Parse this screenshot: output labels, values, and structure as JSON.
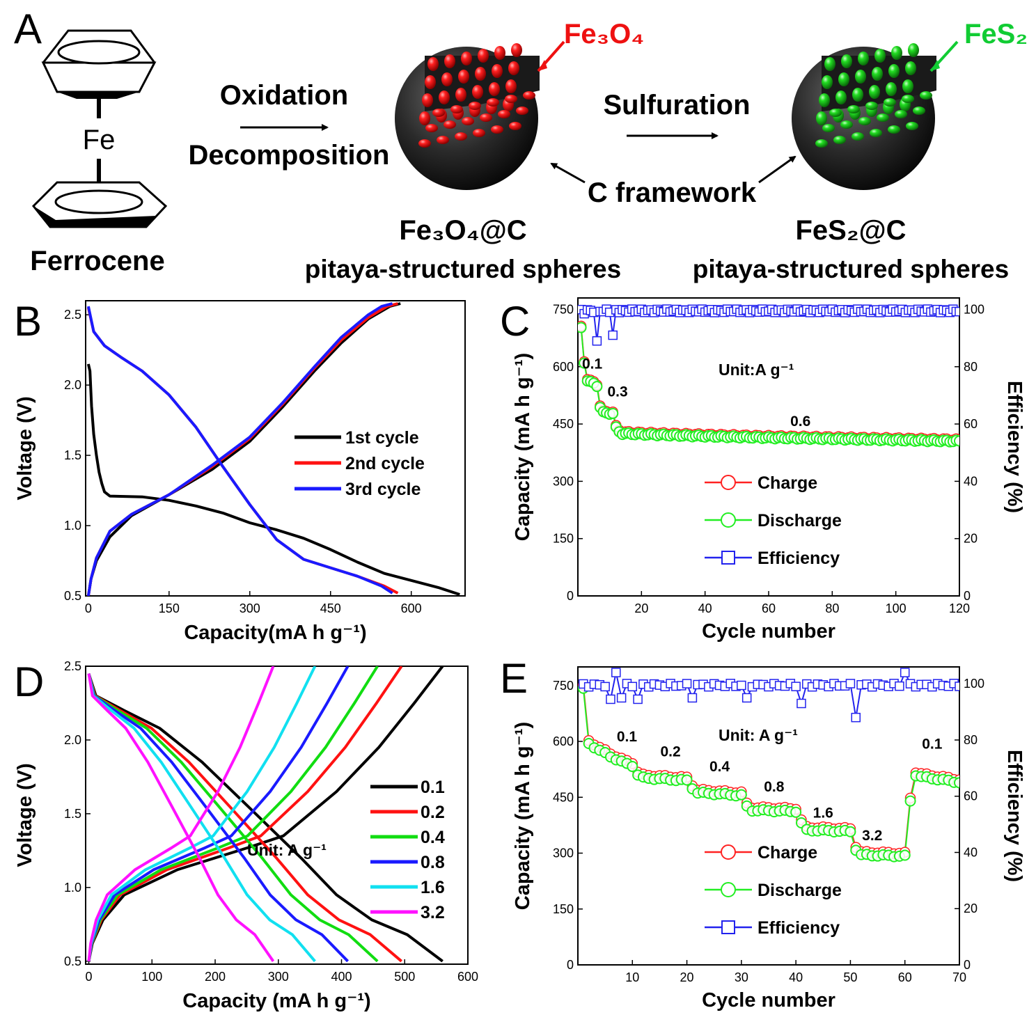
{
  "panel_labels": {
    "A": "A",
    "B": "B",
    "C": "C",
    "D": "D",
    "E": "E"
  },
  "schematic": {
    "ferrocene_label": "Ferrocene",
    "ferrocene_atom": "Fe",
    "step1_line1": "Oxidation",
    "step1_line2": "Decomposition",
    "step2": "Sulfuration",
    "fe3o4_label": "Fe₃O₄",
    "fes2_label": "FeS₂",
    "c_framework": "C framework",
    "product1_name": "Fe₃O₄@C",
    "product1_desc": "pitaya-structured spheres",
    "product2_name": "FeS₂@C",
    "product2_desc": "pitaya-structured spheres",
    "colors": {
      "fe3o4": "#ee1111",
      "fes2": "#11cc33",
      "shell": "#2a2a2a"
    }
  },
  "chart_data": [
    {
      "id": "B",
      "type": "line",
      "xlabel": "Capacity(mA h g⁻¹)",
      "ylabel": "Voltage (V)",
      "xlim": [
        -5,
        700
      ],
      "ylim": [
        0.5,
        2.6
      ],
      "xticks": [
        0,
        150,
        300,
        450,
        600
      ],
      "yticks": [
        0.5,
        1.0,
        1.5,
        2.0,
        2.5
      ],
      "ytick_labels": [
        "0.5",
        "1.0",
        "1.5",
        "2.0",
        "2.5"
      ],
      "series": [
        {
          "name": "1st  cycle",
          "color": "#000000",
          "curves": [
            [
              [
                0,
                2.15
              ],
              [
                3,
                2.1
              ],
              [
                6,
                1.85
              ],
              [
                10,
                1.65
              ],
              [
                15,
                1.5
              ],
              [
                20,
                1.38
              ],
              [
                25,
                1.3
              ],
              [
                30,
                1.24
              ],
              [
                40,
                1.21
              ],
              [
                100,
                1.205
              ],
              [
                150,
                1.18
              ],
              [
                200,
                1.14
              ],
              [
                250,
                1.09
              ],
              [
                300,
                1.02
              ],
              [
                350,
                0.97
              ],
              [
                400,
                0.91
              ],
              [
                450,
                0.83
              ],
              [
                500,
                0.74
              ],
              [
                550,
                0.66
              ],
              [
                600,
                0.61
              ],
              [
                650,
                0.56
              ],
              [
                690,
                0.51
              ]
            ],
            [
              [
                0,
                0.5
              ],
              [
                5,
                0.62
              ],
              [
                15,
                0.75
              ],
              [
                40,
                0.92
              ],
              [
                80,
                1.07
              ],
              [
                150,
                1.22
              ],
              [
                230,
                1.4
              ],
              [
                300,
                1.6
              ],
              [
                360,
                1.84
              ],
              [
                420,
                2.1
              ],
              [
                470,
                2.3
              ],
              [
                520,
                2.47
              ],
              [
                560,
                2.56
              ],
              [
                580,
                2.58
              ]
            ]
          ]
        },
        {
          "name": "2nd cycle",
          "color": "#ff1111",
          "curves": [
            [
              [
                0,
                2.55
              ],
              [
                10,
                2.38
              ],
              [
                30,
                2.28
              ],
              [
                60,
                2.2
              ],
              [
                100,
                2.1
              ],
              [
                150,
                1.93
              ],
              [
                200,
                1.7
              ],
              [
                250,
                1.42
              ],
              [
                300,
                1.15
              ],
              [
                350,
                0.9
              ],
              [
                400,
                0.76
              ],
              [
                450,
                0.7
              ],
              [
                500,
                0.64
              ],
              [
                550,
                0.57
              ],
              [
                575,
                0.52
              ]
            ],
            [
              [
                0,
                0.5
              ],
              [
                5,
                0.62
              ],
              [
                15,
                0.77
              ],
              [
                40,
                0.96
              ],
              [
                80,
                1.08
              ],
              [
                150,
                1.22
              ],
              [
                230,
                1.42
              ],
              [
                300,
                1.62
              ],
              [
                360,
                1.86
              ],
              [
                420,
                2.12
              ],
              [
                470,
                2.32
              ],
              [
                520,
                2.48
              ],
              [
                555,
                2.56
              ],
              [
                575,
                2.58
              ]
            ]
          ]
        },
        {
          "name": "3rd  cycle",
          "color": "#1a1aff",
          "curves": [
            [
              [
                0,
                2.56
              ],
              [
                10,
                2.38
              ],
              [
                30,
                2.28
              ],
              [
                60,
                2.2
              ],
              [
                100,
                2.1
              ],
              [
                150,
                1.93
              ],
              [
                200,
                1.7
              ],
              [
                250,
                1.42
              ],
              [
                300,
                1.15
              ],
              [
                350,
                0.9
              ],
              [
                400,
                0.76
              ],
              [
                450,
                0.7
              ],
              [
                500,
                0.64
              ],
              [
                545,
                0.57
              ],
              [
                565,
                0.52
              ]
            ],
            [
              [
                0,
                0.5
              ],
              [
                5,
                0.62
              ],
              [
                15,
                0.77
              ],
              [
                40,
                0.96
              ],
              [
                80,
                1.08
              ],
              [
                150,
                1.22
              ],
              [
                230,
                1.43
              ],
              [
                300,
                1.63
              ],
              [
                360,
                1.87
              ],
              [
                420,
                2.13
              ],
              [
                470,
                2.34
              ],
              [
                520,
                2.5
              ],
              [
                545,
                2.56
              ],
              [
                565,
                2.58
              ]
            ]
          ]
        }
      ],
      "legend_position": "center-right"
    },
    {
      "id": "C",
      "type": "scatter",
      "xlabel": "Cycle number",
      "ylabel": "Capacity (mA h g⁻¹)",
      "y2label": "Efficiency (%)",
      "xlim": [
        0,
        120
      ],
      "ylim": [
        0,
        780
      ],
      "y2lim": [
        0,
        104
      ],
      "xticks": [
        20,
        40,
        60,
        80,
        100,
        120
      ],
      "yticks": [
        0,
        150,
        300,
        450,
        600,
        750
      ],
      "y2ticks": [
        0,
        20,
        40,
        60,
        80,
        100
      ],
      "unit_label": "Unit:A g⁻¹",
      "annotations": [
        {
          "text": "0.1",
          "x": 4.5,
          "y": 595
        },
        {
          "text": "0.3",
          "x": 12.5,
          "y": 522
        },
        {
          "text": "0.6",
          "x": 70,
          "y": 445
        }
      ],
      "capacity_profile": [
        [
          1,
          700
        ],
        [
          2,
          610
        ],
        [
          3,
          565
        ],
        [
          4,
          560
        ],
        [
          5,
          555
        ],
        [
          6,
          550
        ],
        [
          7,
          495
        ],
        [
          8,
          480
        ],
        [
          9,
          478
        ],
        [
          10,
          478
        ],
        [
          11,
          478
        ],
        [
          12,
          440
        ],
        [
          13,
          430
        ],
        [
          14,
          425
        ],
        [
          20,
          423
        ],
        [
          40,
          418
        ],
        [
          60,
          414
        ],
        [
          80,
          411
        ],
        [
          100,
          408
        ],
        [
          120,
          405
        ]
      ],
      "charge_offset": 4,
      "efficiency_base": 99.5,
      "efficiency_dips": [
        [
          6,
          89
        ],
        [
          11,
          91
        ],
        [
          2,
          98.5
        ]
      ],
      "series": [
        {
          "name": "Charge",
          "color": "#ff2222",
          "marker": "circle"
        },
        {
          "name": "Discharge",
          "color": "#22ee22",
          "marker": "circle"
        },
        {
          "name": "Efficiency",
          "color": "#2222ee",
          "marker": "square"
        }
      ]
    },
    {
      "id": "D",
      "type": "line",
      "xlabel": "Capacity (mA h g⁻¹)",
      "ylabel": "Voltage (V)",
      "xlim": [
        -5,
        600
      ],
      "ylim": [
        0.48,
        2.5
      ],
      "xticks": [
        0,
        100,
        200,
        300,
        400,
        500,
        600
      ],
      "yticks": [
        0.5,
        1.0,
        1.5,
        2.0,
        2.5
      ],
      "ytick_labels": [
        "0.5",
        "1.0",
        "1.5",
        "2.0",
        "2.5"
      ],
      "unit_label": "Unit: A g⁻¹",
      "series": [
        {
          "name": "0.1",
          "color": "#000000",
          "cap": 560
        },
        {
          "name": "0.2",
          "color": "#ff1111",
          "cap": 495
        },
        {
          "name": "0.4",
          "color": "#11dd11",
          "cap": 457
        },
        {
          "name": "0.8",
          "color": "#1a1aff",
          "cap": 410
        },
        {
          "name": "1.6",
          "color": "#11e0f0",
          "cap": 358
        },
        {
          "name": "3.2",
          "color": "#ff11ff",
          "cap": 292
        }
      ],
      "discharge_shape": [
        [
          0,
          2.45
        ],
        [
          0.02,
          2.3
        ],
        [
          0.1,
          2.2
        ],
        [
          0.2,
          2.08
        ],
        [
          0.32,
          1.85
        ],
        [
          0.45,
          1.55
        ],
        [
          0.6,
          1.2
        ],
        [
          0.7,
          0.95
        ],
        [
          0.8,
          0.78
        ],
        [
          0.9,
          0.68
        ],
        [
          1.0,
          0.5
        ]
      ],
      "charge_shape": [
        [
          0,
          0.5
        ],
        [
          0.01,
          0.62
        ],
        [
          0.04,
          0.78
        ],
        [
          0.1,
          0.95
        ],
        [
          0.25,
          1.12
        ],
        [
          0.45,
          1.27
        ],
        [
          0.55,
          1.35
        ],
        [
          0.7,
          1.65
        ],
        [
          0.82,
          1.95
        ],
        [
          0.92,
          2.25
        ],
        [
          1.0,
          2.5
        ]
      ],
      "legend_position": "center-right"
    },
    {
      "id": "E",
      "type": "scatter",
      "xlabel": "Cycle number",
      "ylabel": "Capacity (mA h g⁻¹)",
      "y2label": "Efficiency (%)",
      "xlim": [
        0,
        70
      ],
      "ylim": [
        0,
        800
      ],
      "y2lim": [
        0,
        106
      ],
      "xticks": [
        10,
        20,
        30,
        40,
        50,
        60,
        70
      ],
      "yticks": [
        0,
        150,
        300,
        450,
        600,
        750
      ],
      "y2ticks": [
        0,
        20,
        40,
        60,
        80,
        100
      ],
      "unit_label": "Unit: A g⁻¹",
      "annotations": [
        {
          "text": "0.1",
          "x": 9,
          "y": 600
        },
        {
          "text": "0.2",
          "x": 17,
          "y": 560
        },
        {
          "text": "0.4",
          "x": 26,
          "y": 520
        },
        {
          "text": "0.8",
          "x": 36,
          "y": 465
        },
        {
          "text": "1.6",
          "x": 45,
          "y": 395
        },
        {
          "text": "3.2",
          "x": 54,
          "y": 335
        },
        {
          "text": "0.1",
          "x": 65,
          "y": 580
        }
      ],
      "capacity_profile": [
        [
          1,
          740
        ],
        [
          2,
          595
        ],
        [
          3,
          585
        ],
        [
          4,
          575
        ],
        [
          5,
          568
        ],
        [
          6,
          560
        ],
        [
          7,
          552
        ],
        [
          8,
          545
        ],
        [
          9,
          540
        ],
        [
          10,
          535
        ],
        [
          11,
          510
        ],
        [
          12,
          502
        ],
        [
          20,
          495
        ],
        [
          21,
          475
        ],
        [
          22,
          462
        ],
        [
          30,
          455
        ],
        [
          31,
          425
        ],
        [
          32,
          415
        ],
        [
          40,
          412
        ],
        [
          41,
          380
        ],
        [
          42,
          362
        ],
        [
          50,
          358
        ],
        [
          51,
          310
        ],
        [
          52,
          295
        ],
        [
          60,
          292
        ],
        [
          61,
          440
        ],
        [
          62,
          510
        ],
        [
          63,
          505
        ],
        [
          70,
          490
        ]
      ],
      "charge_offset": 8,
      "efficiency_base": 99.5,
      "efficiency_dips": [
        [
          6,
          94.5
        ],
        [
          7,
          104
        ],
        [
          11,
          94.5
        ],
        [
          21,
          95
        ],
        [
          31,
          95
        ],
        [
          41,
          93
        ],
        [
          51,
          88
        ],
        [
          60,
          104
        ],
        [
          8,
          95
        ]
      ],
      "series": [
        {
          "name": "Charge",
          "color": "#ff2222",
          "marker": "circle"
        },
        {
          "name": "Discharge",
          "color": "#22ee22",
          "marker": "circle"
        },
        {
          "name": "Efficiency",
          "color": "#2222ee",
          "marker": "square"
        }
      ]
    }
  ]
}
